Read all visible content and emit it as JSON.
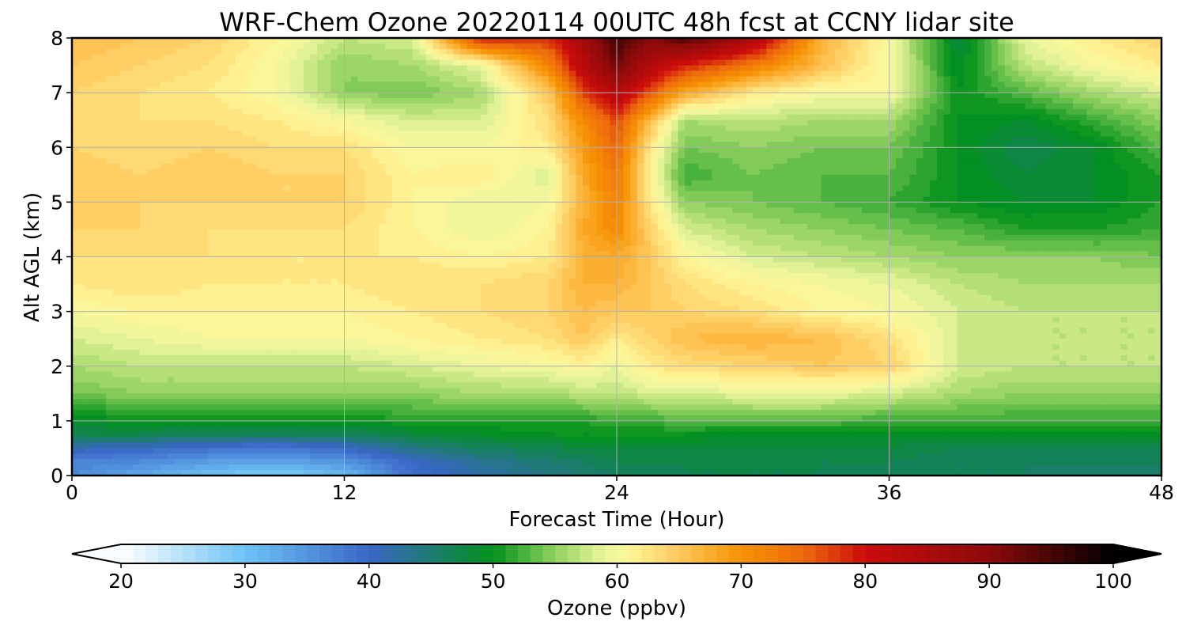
{
  "chart_data": {
    "type": "heatmap",
    "title": "WRF-Chem Ozone  20220114 00UTC 48h fcst at CCNY lidar site",
    "xlabel": "Forecast Time (Hour)",
    "ylabel": "Alt AGL (km)",
    "xlim": [
      0,
      48
    ],
    "ylim": [
      0,
      8
    ],
    "x_ticks": [
      "0",
      "12",
      "24",
      "36",
      "48"
    ],
    "y_ticks": [
      "0",
      "1",
      "2",
      "3",
      "4",
      "5",
      "6",
      "7",
      "8"
    ],
    "grid": true,
    "x": [
      0,
      3,
      6,
      9,
      12,
      15,
      18,
      21,
      22.5,
      24,
      25.5,
      27,
      30,
      33,
      36,
      39,
      42,
      45,
      48
    ],
    "y": [
      0,
      0.25,
      0.5,
      0.75,
      1,
      1.5,
      2,
      2.5,
      3,
      3.5,
      4,
      4.5,
      5,
      5.5,
      6,
      6.5,
      7,
      7.5,
      8
    ],
    "z": [
      [
        36,
        33,
        30,
        28,
        31,
        39,
        42,
        44,
        45,
        46,
        46,
        47,
        47,
        47,
        46,
        46,
        46,
        45,
        45
      ],
      [
        37,
        36,
        34,
        33,
        35,
        40,
        43,
        45,
        46,
        47,
        47,
        47,
        47,
        47,
        47,
        46,
        46,
        46,
        46
      ],
      [
        41,
        40,
        39,
        38,
        40,
        44,
        46,
        47,
        48,
        48,
        48,
        48,
        48,
        48,
        48,
        47,
        47,
        47,
        47
      ],
      [
        47,
        47,
        46,
        46,
        46,
        48,
        49,
        50,
        50,
        50,
        50,
        50,
        49,
        49,
        49,
        49,
        49,
        49,
        49
      ],
      [
        49,
        50,
        50,
        50,
        50,
        51,
        51,
        51,
        51,
        52,
        52,
        53,
        53,
        53,
        52,
        52,
        52,
        52,
        52
      ],
      [
        54,
        55,
        55,
        55,
        55,
        55,
        56,
        56,
        57,
        57,
        58,
        58,
        59,
        59,
        58,
        56,
        55,
        55,
        55
      ],
      [
        56,
        57,
        57,
        57,
        57,
        58,
        59,
        60,
        61,
        59,
        62,
        63,
        64,
        65,
        64,
        58,
        57,
        57,
        57
      ],
      [
        58,
        59,
        60,
        60,
        60,
        61,
        62,
        63,
        65,
        62,
        64,
        66,
        67,
        66,
        63,
        58,
        57,
        57,
        57
      ],
      [
        60,
        61,
        61,
        61,
        61,
        62,
        63,
        64,
        66,
        65,
        65,
        64,
        63,
        61,
        60,
        58,
        57,
        57,
        57
      ],
      [
        62,
        63,
        62,
        62,
        62,
        63,
        63,
        64,
        67,
        67,
        65,
        63,
        61,
        60,
        59,
        57,
        56,
        56,
        56
      ],
      [
        63,
        63,
        63,
        62,
        62,
        62,
        61,
        62,
        67,
        68,
        65,
        61,
        58,
        57,
        56,
        55,
        55,
        55,
        54
      ],
      [
        64,
        64,
        63,
        63,
        63,
        61,
        59,
        61,
        68,
        71,
        64,
        58,
        56,
        55,
        54,
        53,
        51,
        51,
        52
      ],
      [
        65,
        64,
        64,
        64,
        64,
        61,
        59,
        60,
        67,
        72,
        62,
        55,
        54,
        53,
        52,
        50,
        49,
        49,
        51
      ],
      [
        65,
        64,
        65,
        64,
        64,
        61,
        62,
        58,
        68,
        73,
        61,
        52,
        54,
        53,
        53,
        50,
        48,
        49,
        51
      ],
      [
        64,
        63,
        64,
        63,
        63,
        60,
        60,
        62,
        69,
        75,
        62,
        54,
        55,
        54,
        54,
        50,
        47,
        49,
        53
      ],
      [
        64,
        63,
        63,
        62,
        60,
        58,
        58,
        63,
        71,
        77,
        66,
        56,
        57,
        56,
        56,
        50,
        49,
        52,
        55
      ],
      [
        64,
        63,
        62,
        60,
        55,
        54,
        56,
        65,
        77,
        84,
        76,
        68,
        62,
        60,
        60,
        50,
        53,
        56,
        58
      ],
      [
        65,
        64,
        63,
        60,
        55,
        56,
        59,
        72,
        83,
        92,
        84,
        79,
        73,
        66,
        60,
        49,
        57,
        60,
        62
      ],
      [
        66,
        65,
        64,
        61,
        57,
        58,
        80,
        78,
        86,
        96,
        90,
        95,
        85,
        67,
        60,
        48,
        59,
        62,
        64
      ]
    ],
    "colorbar": {
      "label": "Ozone  (ppbv)",
      "min": 20,
      "max": 100,
      "tick_labels": [
        "20",
        "30",
        "40",
        "50",
        "60",
        "70",
        "80",
        "90",
        "100"
      ],
      "extend": "both",
      "stops": [
        [
          20,
          "#ffffff"
        ],
        [
          30,
          "#6ec3f5"
        ],
        [
          40,
          "#3a66c7"
        ],
        [
          50,
          "#00911a"
        ],
        [
          55,
          "#92d160"
        ],
        [
          59,
          "#ecf59c"
        ],
        [
          61,
          "#fff699"
        ],
        [
          65,
          "#ffc85c"
        ],
        [
          70,
          "#f79304"
        ],
        [
          75,
          "#ed6a0c"
        ],
        [
          80,
          "#cb0c0c"
        ],
        [
          90,
          "#8c0a0a"
        ],
        [
          100,
          "#000000"
        ]
      ]
    }
  }
}
